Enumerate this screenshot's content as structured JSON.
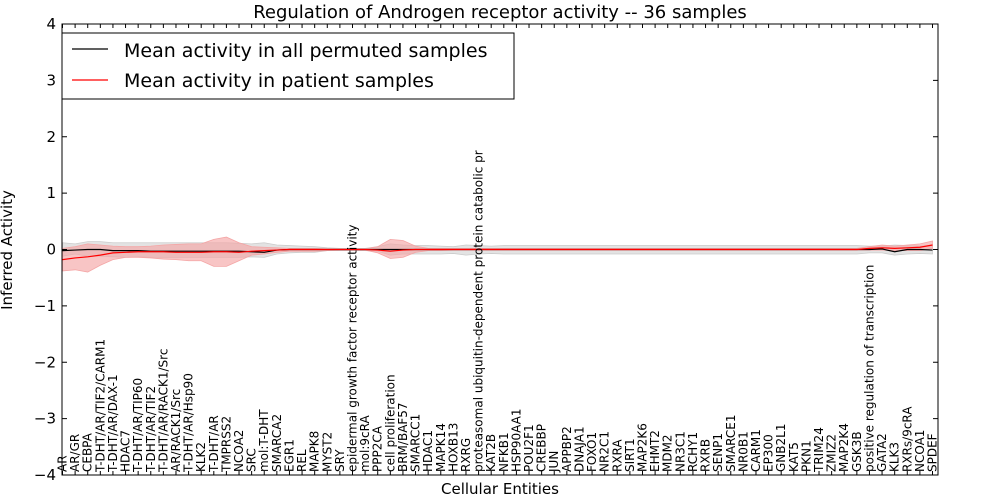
{
  "chart_data": {
    "type": "line",
    "title": "Regulation of Androgen receptor activity -- 36 samples",
    "xlabel": "Cellular Entities",
    "ylabel": "Inferred Activity",
    "ylim": [
      -4,
      4
    ],
    "yticks": [
      -4,
      -3,
      -2,
      -1,
      0,
      1,
      2,
      3,
      4
    ],
    "ytick_labels": [
      "−4",
      "−3",
      "−2",
      "−1",
      "0",
      "1",
      "2",
      "3",
      "4"
    ],
    "grid": false,
    "legend_position": "upper-left",
    "categories": [
      "AR",
      "AR/GR",
      "CEBPA",
      "T-DHT/AR/TIF2/CARM1",
      "T-DHT/AR/DAX-1",
      "HDAC7",
      "T-DHT/AR/TIP60",
      "T-DHT/AR/TIF2",
      "T-DHT/AR/RACK1/Src",
      "AR/RACK1/Src",
      "T-DHT/AR/Hsp90",
      "KLK2",
      "T-DHT/AR",
      "TMPRSS2",
      "NCOA2",
      "SRC",
      "mol:T-DHT",
      "SMARCA2",
      "EGR1",
      "REL",
      "MAPK8",
      "MYST2",
      "SRY",
      "epidermal growth factor receptor activity",
      "mol:9cRA",
      "PPP2CA",
      "cell proliferation",
      "BRM/BAF57",
      "SMARCC1",
      "HDAC1",
      "MAPK14",
      "HOXB13",
      "RXRG",
      "proteasomal ubiquitin-dependent protein catabolic pr",
      "KAT2B",
      "NFKB1",
      "HSP90AA1",
      "POU2F1",
      "CREBBP",
      "JUN",
      "APPBP2",
      "DNAJA1",
      "FOXO1",
      "NR2C1",
      "RXRA",
      "SIRT1",
      "MAP2K6",
      "EHMT2",
      "MDM2",
      "NR3C1",
      "RCHY1",
      "RXRB",
      "SENP1",
      "SMARCE1",
      "NR0B1",
      "CARM1",
      "EP300",
      "GNB2L1",
      "KAT5",
      "PKN1",
      "TRIM24",
      "ZMIZ2",
      "MAP2K4",
      "GSK3B",
      "positive regulation of transcription",
      "GATA2",
      "KLK3",
      "RXRs/9cRA",
      "NCOA1",
      "SPDEF"
    ],
    "series": [
      {
        "name": "Mean activity in all permuted samples",
        "color": "#000000",
        "band_color": "#cccccc",
        "values": [
          -0.02,
          -0.01,
          0.0,
          0.0,
          -0.02,
          -0.02,
          -0.02,
          -0.03,
          -0.03,
          -0.03,
          -0.03,
          -0.03,
          -0.03,
          -0.03,
          -0.03,
          -0.04,
          -0.05,
          -0.01,
          0.0,
          0.0,
          0.0,
          0.0,
          0.0,
          0.0,
          0.0,
          0.0,
          0.0,
          0.0,
          0.0,
          0.0,
          0.0,
          0.0,
          0.0,
          0.0,
          0.0,
          0.0,
          0.0,
          0.0,
          0.0,
          0.0,
          0.0,
          0.0,
          0.0,
          0.0,
          0.0,
          0.0,
          0.0,
          0.0,
          0.0,
          0.0,
          0.0,
          0.0,
          0.0,
          0.0,
          0.0,
          0.0,
          0.0,
          0.0,
          0.0,
          0.0,
          0.0,
          0.0,
          0.0,
          0.0,
          0.0,
          0.01,
          -0.04,
          0.0,
          0.0,
          -0.01
        ],
        "lower": [
          -0.12,
          -0.08,
          -0.12,
          -0.12,
          -0.13,
          -0.14,
          -0.13,
          -0.14,
          -0.14,
          -0.14,
          -0.14,
          -0.14,
          -0.14,
          -0.14,
          -0.14,
          -0.13,
          -0.14,
          -0.08,
          -0.06,
          -0.05,
          -0.05,
          -0.02,
          -0.02,
          -0.02,
          -0.02,
          -0.03,
          -0.1,
          -0.08,
          -0.08,
          -0.08,
          -0.08,
          -0.07,
          -0.1,
          -0.08,
          -0.07,
          -0.08,
          -0.08,
          -0.08,
          -0.08,
          -0.08,
          -0.08,
          -0.08,
          -0.08,
          -0.08,
          -0.08,
          -0.08,
          -0.08,
          -0.08,
          -0.08,
          -0.08,
          -0.08,
          -0.08,
          -0.08,
          -0.08,
          -0.08,
          -0.08,
          -0.08,
          -0.08,
          -0.08,
          -0.08,
          -0.08,
          -0.08,
          -0.08,
          -0.08,
          -0.06,
          -0.06,
          -0.1,
          -0.08,
          -0.07,
          -0.08
        ],
        "upper": [
          0.12,
          0.1,
          0.14,
          0.14,
          0.12,
          0.12,
          0.12,
          0.12,
          0.12,
          0.12,
          0.12,
          0.12,
          0.12,
          0.12,
          0.11,
          0.1,
          0.12,
          0.08,
          0.07,
          0.06,
          0.05,
          0.03,
          0.02,
          0.02,
          0.02,
          0.05,
          0.1,
          0.08,
          0.07,
          0.07,
          0.06,
          0.05,
          0.08,
          0.07,
          0.06,
          0.07,
          0.07,
          0.07,
          0.07,
          0.07,
          0.07,
          0.07,
          0.07,
          0.07,
          0.07,
          0.07,
          0.07,
          0.07,
          0.07,
          0.07,
          0.07,
          0.07,
          0.07,
          0.07,
          0.07,
          0.07,
          0.07,
          0.07,
          0.07,
          0.07,
          0.07,
          0.07,
          0.07,
          0.07,
          0.06,
          0.06,
          0.08,
          0.07,
          0.06,
          0.07
        ]
      },
      {
        "name": "Mean activity in patient samples",
        "color": "#ff0000",
        "band_color": "#f4a6a6",
        "values": [
          -0.18,
          -0.15,
          -0.13,
          -0.1,
          -0.06,
          -0.05,
          -0.04,
          -0.04,
          -0.04,
          -0.05,
          -0.05,
          -0.05,
          -0.04,
          -0.04,
          -0.05,
          -0.03,
          -0.02,
          -0.01,
          0.0,
          0.0,
          0.0,
          0.0,
          0.0,
          0.0,
          0.0,
          -0.01,
          -0.03,
          -0.01,
          0.0,
          0.0,
          0.0,
          0.0,
          0.0,
          0.0,
          0.0,
          0.0,
          0.0,
          0.0,
          0.0,
          0.0,
          0.0,
          0.0,
          0.0,
          0.0,
          0.0,
          0.0,
          0.0,
          0.0,
          0.0,
          0.0,
          0.0,
          0.0,
          0.0,
          0.0,
          0.0,
          0.0,
          0.0,
          0.0,
          0.0,
          0.0,
          0.0,
          0.0,
          0.0,
          0.0,
          0.02,
          0.03,
          0.02,
          0.03,
          0.04,
          0.08
        ],
        "lower": [
          -0.38,
          -0.36,
          -0.4,
          -0.28,
          -0.18,
          -0.14,
          -0.14,
          -0.15,
          -0.17,
          -0.18,
          -0.2,
          -0.2,
          -0.3,
          -0.3,
          -0.2,
          -0.1,
          -0.08,
          -0.05,
          -0.03,
          -0.03,
          -0.03,
          -0.02,
          -0.01,
          -0.01,
          -0.01,
          -0.06,
          -0.16,
          -0.14,
          -0.05,
          -0.02,
          -0.02,
          -0.01,
          -0.01,
          -0.01,
          -0.01,
          -0.01,
          -0.01,
          -0.01,
          -0.01,
          -0.01,
          -0.01,
          -0.01,
          -0.01,
          -0.01,
          -0.01,
          -0.01,
          -0.01,
          -0.01,
          -0.01,
          -0.01,
          -0.01,
          -0.01,
          -0.01,
          -0.01,
          -0.01,
          -0.01,
          -0.01,
          -0.01,
          -0.01,
          -0.01,
          -0.01,
          -0.01,
          -0.01,
          -0.01,
          -0.01,
          -0.01,
          -0.02,
          -0.02,
          -0.02,
          0.02
        ],
        "upper": [
          0.02,
          0.05,
          0.1,
          0.08,
          0.06,
          0.05,
          0.05,
          0.06,
          0.08,
          0.09,
          0.1,
          0.1,
          0.18,
          0.22,
          0.12,
          0.05,
          0.04,
          0.03,
          0.02,
          0.02,
          0.02,
          0.01,
          0.01,
          0.01,
          0.01,
          0.05,
          0.18,
          0.16,
          0.06,
          0.02,
          0.02,
          0.02,
          0.02,
          0.02,
          0.02,
          0.02,
          0.02,
          0.02,
          0.02,
          0.02,
          0.02,
          0.02,
          0.02,
          0.02,
          0.02,
          0.02,
          0.02,
          0.02,
          0.02,
          0.02,
          0.02,
          0.02,
          0.02,
          0.02,
          0.02,
          0.02,
          0.02,
          0.02,
          0.02,
          0.02,
          0.02,
          0.02,
          0.02,
          0.02,
          0.05,
          0.08,
          0.06,
          0.08,
          0.1,
          0.15
        ]
      }
    ]
  }
}
